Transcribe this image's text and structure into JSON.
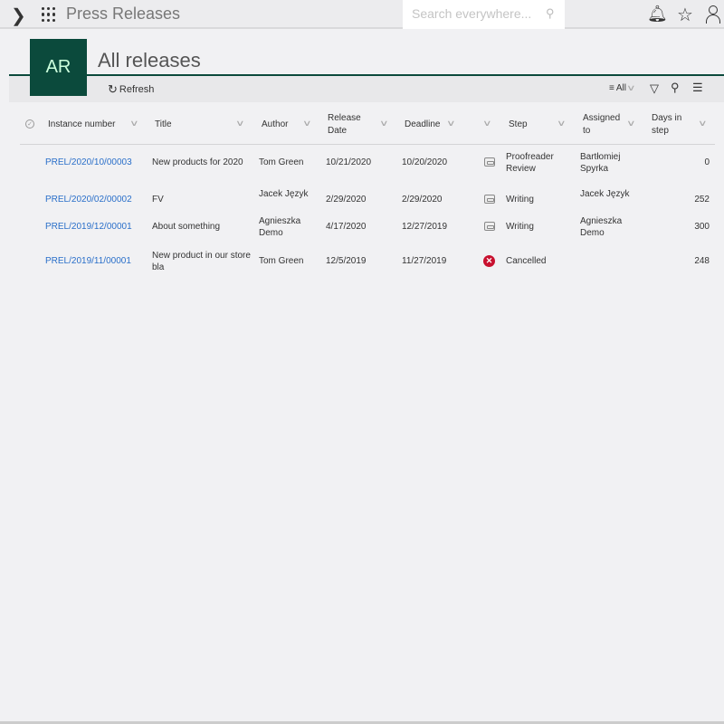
{
  "app": {
    "title": "Press Releases",
    "search_placeholder": "Search everywhere..."
  },
  "page": {
    "avatar": "AR",
    "title": "All releases"
  },
  "toolbar": {
    "refresh": "Refresh",
    "view": "All"
  },
  "columns": [
    "Instance number",
    "Title",
    "Author",
    "Release Date",
    "Deadline",
    "",
    "Step",
    "Assigned to",
    "Days in step"
  ],
  "rows": [
    {
      "instance": "PREL/2020/10/00003",
      "title": "New products for 2020",
      "author": "Tom Green",
      "release": "10/21/2020",
      "deadline": "10/20/2020",
      "status_icon": "task-icon",
      "step": "Proofreader Review",
      "assigned": "Bartłomiej Spyrka",
      "days": "0"
    },
    {
      "instance": "PREL/2020/02/00002",
      "title": "FV",
      "author": "Jacek Język",
      "release": "2/29/2020",
      "deadline": "2/29/2020",
      "status_icon": "task-icon",
      "step": "Writing",
      "assigned": "Jacek Język",
      "days": "252"
    },
    {
      "instance": "PREL/2019/12/00001",
      "title": "About something",
      "author": "Agnieszka Demo",
      "release": "4/17/2020",
      "deadline": "12/27/2019",
      "status_icon": "task-icon",
      "step": "Writing",
      "assigned": "Agnieszka Demo",
      "days": "300"
    },
    {
      "instance": "PREL/2019/11/00001",
      "title": "New product in our store bla",
      "author": "Tom Green",
      "release": "12/5/2019",
      "deadline": "11/27/2019",
      "status_icon": "cancelled-icon",
      "step": "Cancelled",
      "assigned": "",
      "days": "248"
    }
  ],
  "colors": {
    "brand": "#0b4a3c",
    "link": "#2a6fc9",
    "cancel": "#c8102e"
  }
}
